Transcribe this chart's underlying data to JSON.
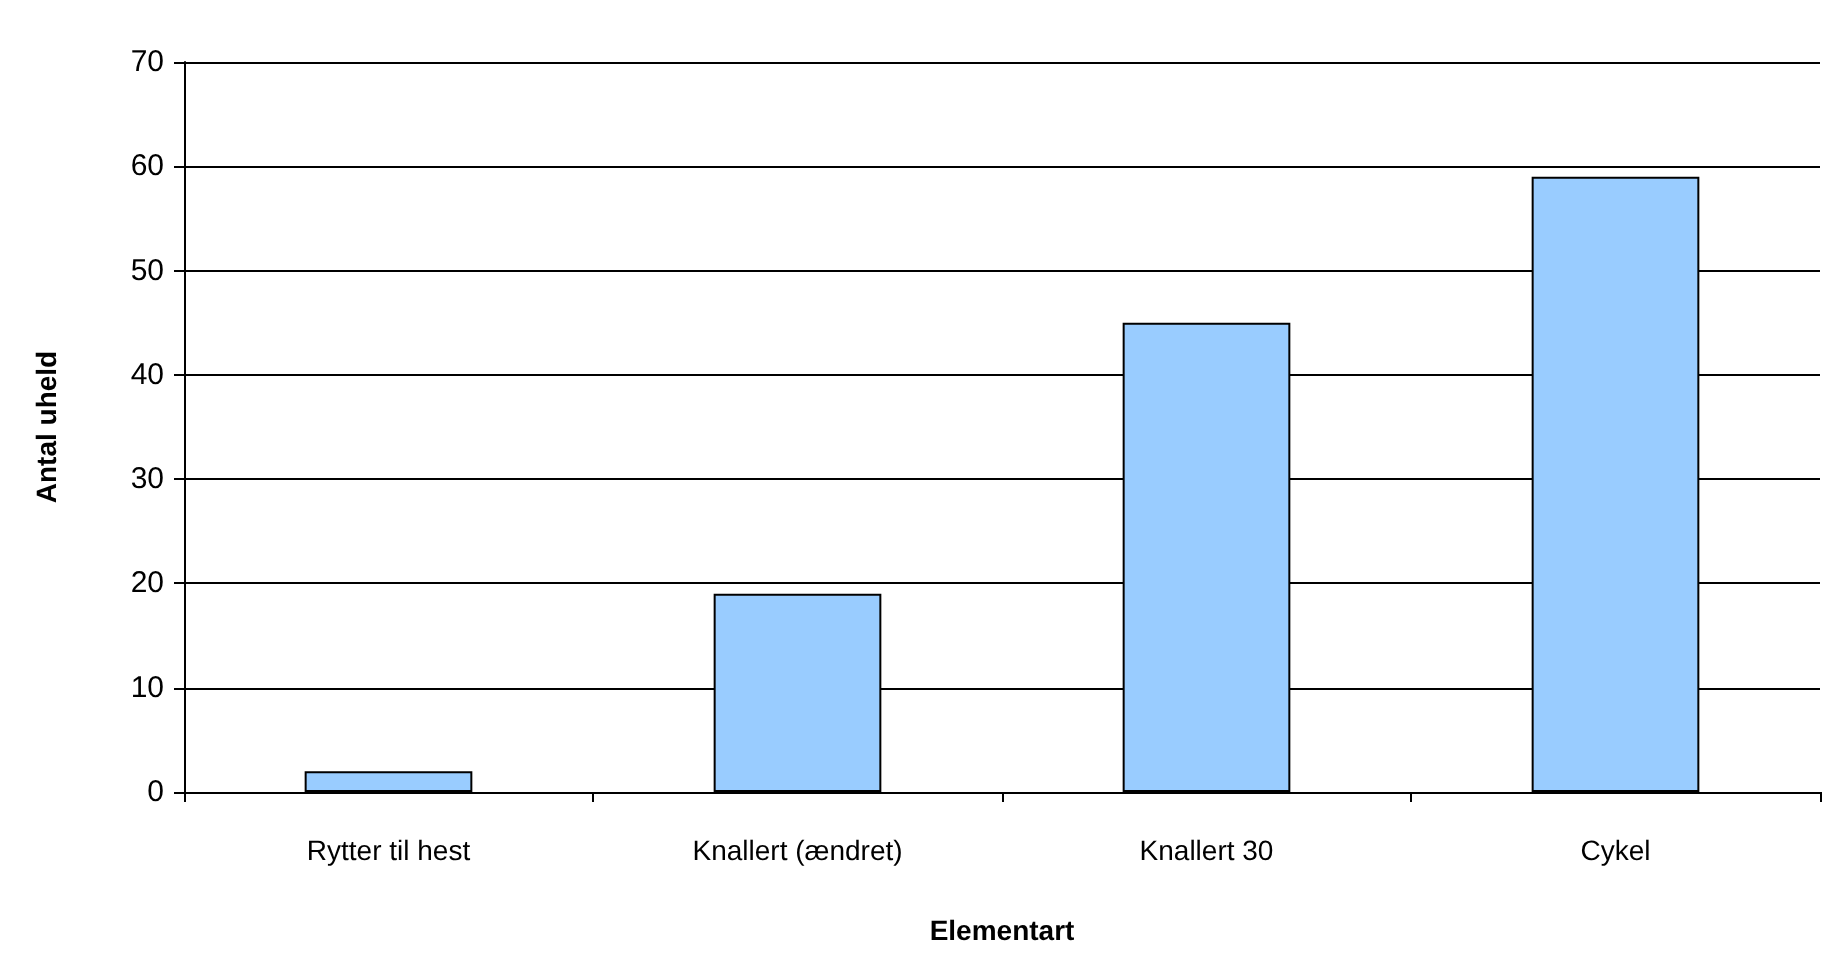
{
  "chart_data": {
    "type": "bar",
    "xlabel": "Elementart",
    "ylabel": "Antal uheld",
    "categories": [
      "Rytter til hest",
      "Knallert (ændret)",
      "Knallert 30",
      "Cykel"
    ],
    "values": [
      2,
      19,
      45,
      59
    ],
    "color": "#99ccff",
    "ylim": [
      0,
      70
    ],
    "yticks": [
      0,
      10,
      20,
      30,
      40,
      50,
      60,
      70
    ],
    "grid": "y"
  }
}
